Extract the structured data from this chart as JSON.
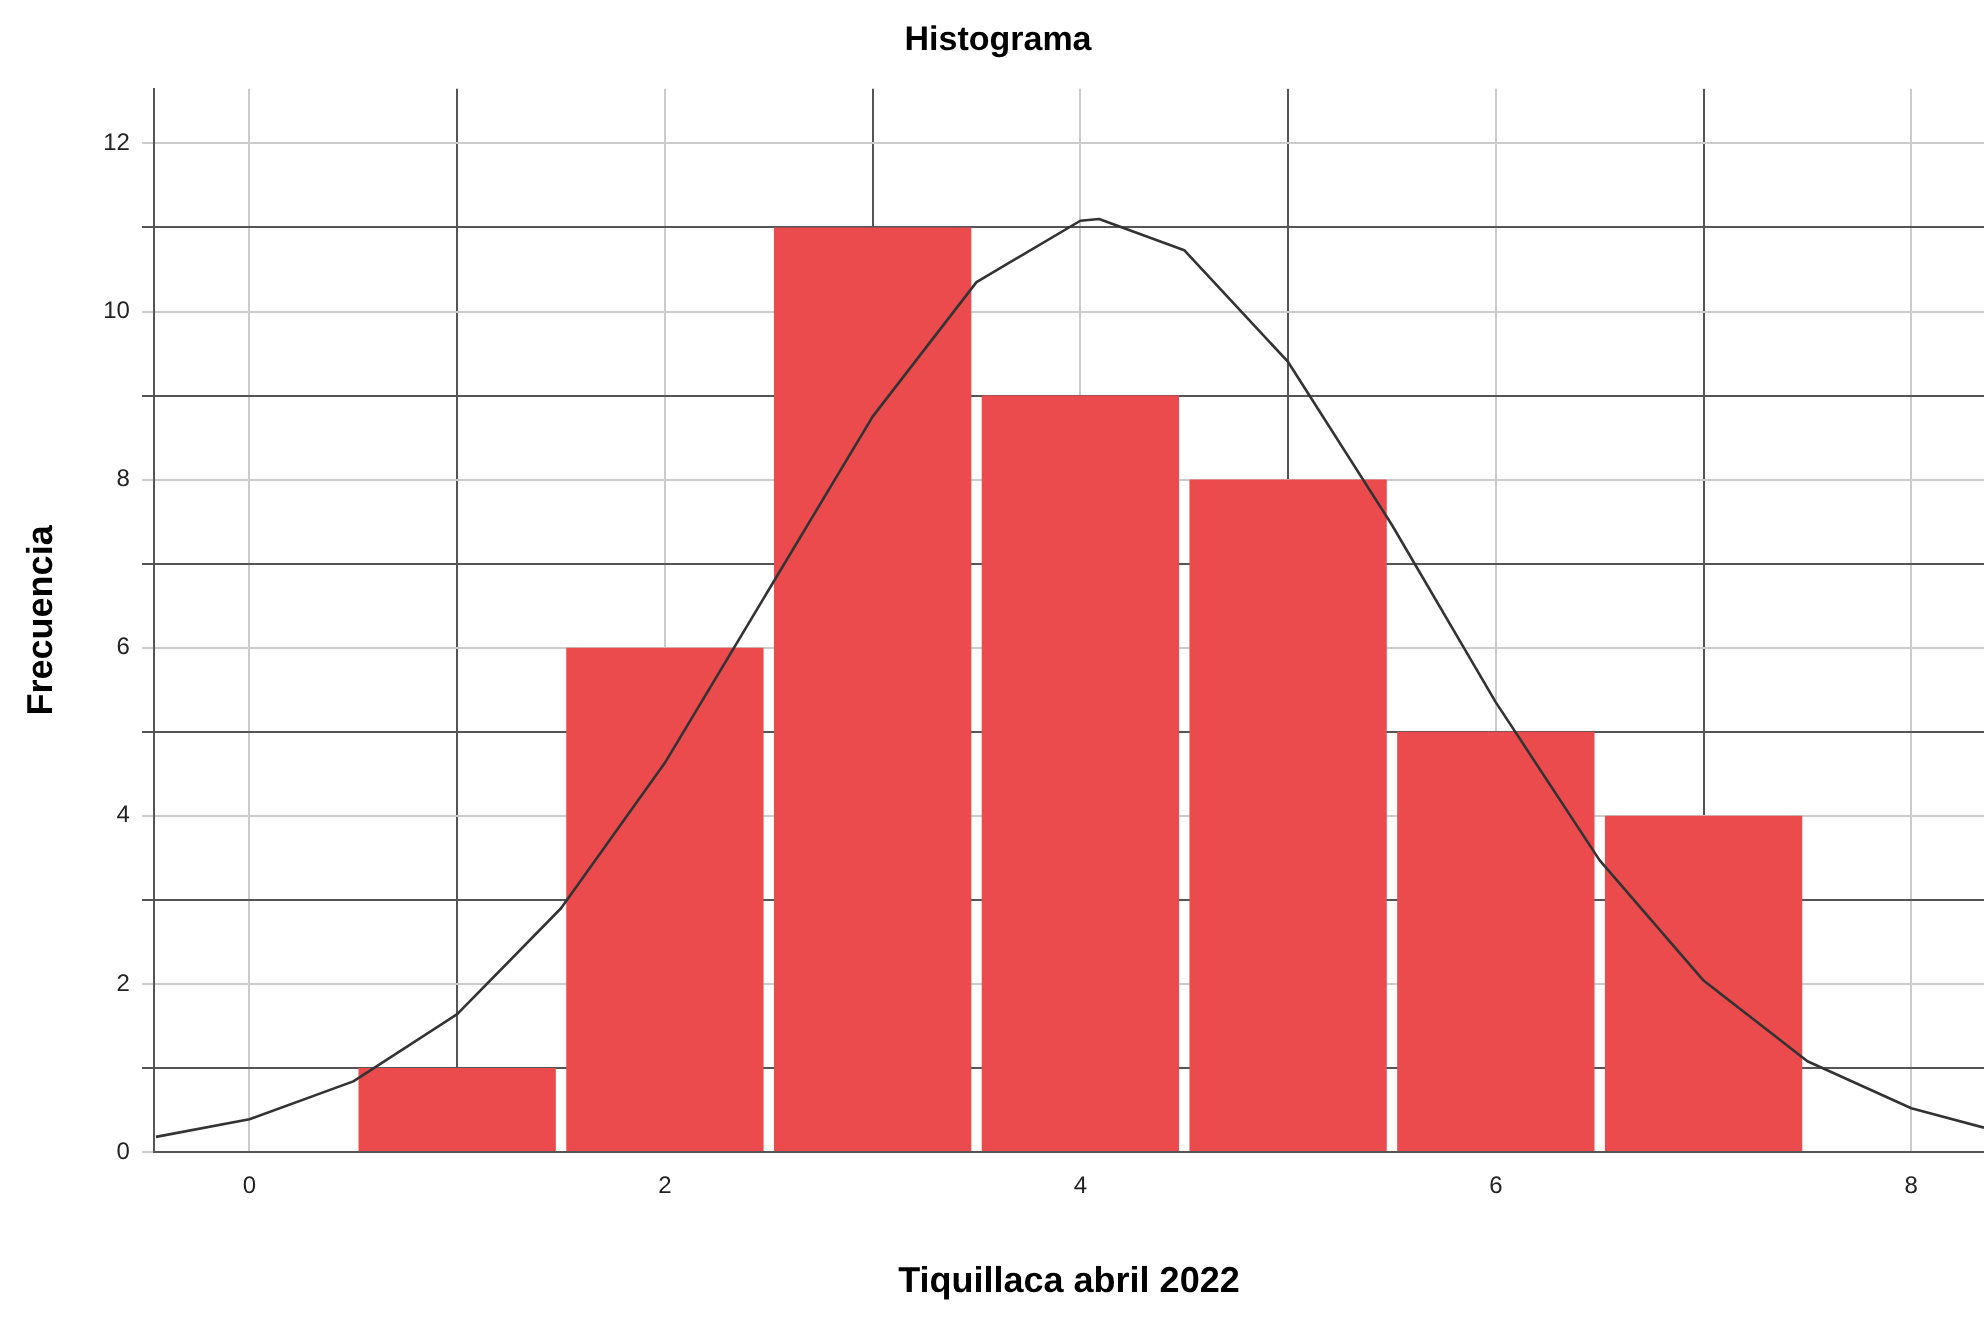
{
  "chart_data": {
    "type": "histogram",
    "title": "Histograma",
    "xlabel": "Tiquillaca abril 2022",
    "ylabel": "Frecuencia",
    "bins": [
      0.5,
      1.5,
      2.5,
      3.5,
      4.5,
      5.5,
      6.5,
      7.5
    ],
    "values": [
      1,
      6,
      11,
      9,
      8,
      5,
      4
    ],
    "color": "#ec4b4d",
    "series": [
      {
        "type": "line",
        "color": "#333333",
        "x": [
          -0.45,
          0,
          0.5,
          1,
          1.5,
          2,
          2.5,
          3,
          3.5,
          4,
          4.09,
          4.5,
          5,
          5.5,
          6,
          6.5,
          7,
          7.5,
          8,
          8.35
        ],
        "values": [
          0.18,
          0.39,
          0.84,
          1.64,
          2.9,
          4.63,
          6.69,
          8.75,
          10.35,
          11.08,
          11.1,
          10.73,
          9.4,
          7.46,
          5.35,
          3.47,
          2.04,
          1.08,
          0.52,
          0.29
        ]
      }
    ],
    "xlim": [
      -0.46,
      8.35
    ],
    "ylim": [
      0,
      12.65
    ],
    "xticks": [
      0,
      {
        "value": 1,
        "label": null
      },
      2,
      {
        "value": 3,
        "label": null
      },
      4,
      {
        "value": 5,
        "label": null
      },
      6,
      {
        "value": 7,
        "label": null
      },
      8
    ],
    "yticks": [
      0,
      {
        "value": 1,
        "label": null
      },
      2,
      {
        "value": 3,
        "label": null
      },
      4,
      {
        "value": 5,
        "label": null
      },
      6,
      {
        "value": 7,
        "label": null
      },
      8,
      {
        "value": 9,
        "label": null
      },
      10,
      {
        "value": 11,
        "label": null
      },
      12
    ],
    "grid": true,
    "legend": false,
    "marker": "none",
    "line_style": "solid"
  }
}
